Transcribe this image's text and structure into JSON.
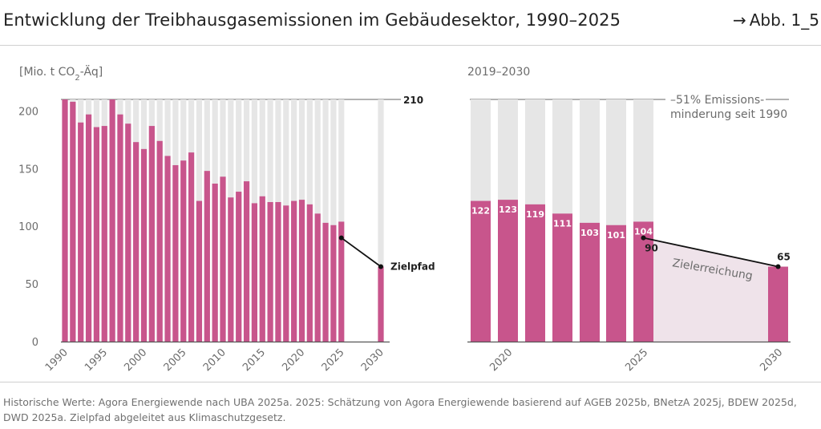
{
  "header": {
    "title": "Entwicklung der Treibhausgasemissionen im Gebäudesektor, 1990–2025",
    "figure_ref": "Abb. 1_5",
    "arrow": "→"
  },
  "footer": {
    "source": "Historische Werte: Agora Energiewende nach UBA 2025a. 2025: Schätzung von Agora Energiewende basierend auf AGEB 2025b, BNetzA 2025j, BDEW 2025d, DWD 2025a. Zielpfad abgeleitet aus Klimaschutzgesetz."
  },
  "colors": {
    "bar": "#c8558c",
    "background_bar": "#e6e6e6",
    "target_area": "#efe3ea",
    "line": "#111111",
    "gridline": "#9a9a9a",
    "axis": "#555555"
  },
  "chart_data": [
    {
      "type": "bar",
      "unit_label": "[Mio. t CO",
      "unit_sub": "2",
      "unit_suffix": "-Äq]",
      "reference_value": 210,
      "reference_label": "210",
      "ylim": [
        0,
        210
      ],
      "yticks": [
        0,
        50,
        100,
        150,
        200
      ],
      "xlim": [
        1990,
        2030
      ],
      "xtick_labels": [
        "1990",
        "1995",
        "2000",
        "2005",
        "2010",
        "2015",
        "2020",
        "2025",
        "2030"
      ],
      "xticks": [
        1990,
        1995,
        2000,
        2005,
        2010,
        2015,
        2020,
        2025,
        2030
      ],
      "years": [
        1990,
        1991,
        1992,
        1993,
        1994,
        1995,
        1996,
        1997,
        1998,
        1999,
        2000,
        2001,
        2002,
        2003,
        2004,
        2005,
        2006,
        2007,
        2008,
        2009,
        2010,
        2011,
        2012,
        2013,
        2014,
        2015,
        2016,
        2017,
        2018,
        2019,
        2020,
        2021,
        2022,
        2023,
        2024,
        2025,
        2030
      ],
      "values": [
        210,
        208,
        190,
        197,
        186,
        187,
        210,
        197,
        189,
        173,
        167,
        187,
        174,
        161,
        153,
        157,
        164,
        122,
        148,
        137,
        143,
        125,
        130,
        139,
        120,
        126,
        121,
        121,
        118,
        122,
        123,
        119,
        111,
        103,
        101,
        104,
        65
      ],
      "target_path": {
        "label": "Zielpfad",
        "points": [
          [
            2025,
            90
          ],
          [
            2030,
            65
          ]
        ]
      }
    },
    {
      "type": "bar",
      "title": "2019–2030",
      "reference_value": 210,
      "reduction_label_line1": "–51% Emissions-",
      "reduction_label_line2": "minderung seit 1990",
      "ylim": [
        0,
        210
      ],
      "xtick_labels": [
        "2020",
        "2025",
        "2030"
      ],
      "xticks": [
        2020,
        2025,
        2030
      ],
      "years": [
        2019,
        2020,
        2021,
        2022,
        2023,
        2024,
        2025,
        2030
      ],
      "values": [
        122,
        123,
        119,
        111,
        103,
        101,
        104,
        65
      ],
      "value_labels": [
        "122",
        "123",
        "119",
        "111",
        "103",
        "101",
        "104",
        "65"
      ],
      "target_path": {
        "points": [
          [
            2025,
            90
          ],
          [
            2030,
            65
          ]
        ],
        "start_label": "90",
        "area_label": "Zielerreichung"
      }
    }
  ]
}
